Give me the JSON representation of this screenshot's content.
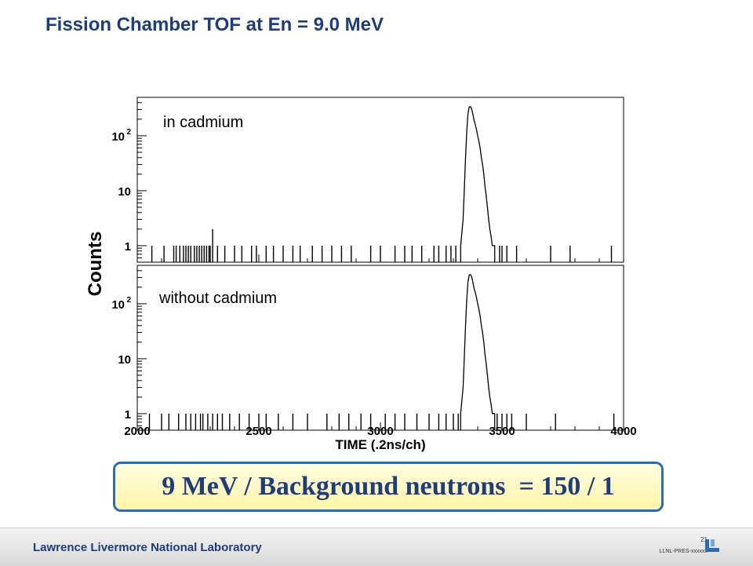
{
  "slide": {
    "title": "Fission Chamber TOF at En = 9.0 MeV",
    "callout": "9 MeV / Background neutrons  = 150 / 1"
  },
  "footer": {
    "lab": "Lawrence Livermore National Laboratory",
    "page": "21",
    "code": "LLNL-PRES-xxxxxx"
  },
  "colors": {
    "title": "#1f3d7a",
    "callout_border": "#2a6db5",
    "callout_fill": "#fff4a8",
    "trace": "#000000"
  },
  "chart_data": {
    "type": "line",
    "xlabel": "TIME (.2ns/ch)",
    "ylabel": "Counts",
    "xlim": [
      2000,
      4000
    ],
    "x_ticks": [
      "2000",
      "2500",
      "3000",
      "3500",
      "4000"
    ],
    "y_scale": "log",
    "ylim": [
      0.5,
      500
    ],
    "y_ticks": [
      {
        "value": 1,
        "label": "1"
      },
      {
        "value": 10,
        "label": "10"
      },
      {
        "value": 100,
        "label": "10",
        "exp": "2"
      }
    ],
    "grid": false,
    "legend": "none",
    "panels": [
      {
        "label": "in cadmium",
        "peak": {
          "x": [
            3330,
            3340,
            3345,
            3350,
            3355,
            3360,
            3365,
            3370,
            3375,
            3380,
            3385,
            3390,
            3395,
            3400,
            3405,
            3410,
            3415,
            3420,
            3425,
            3430,
            3435,
            3440,
            3445,
            3450,
            3455,
            3460,
            3465,
            3470
          ],
          "y": [
            1,
            3,
            10,
            40,
            120,
            250,
            330,
            340,
            310,
            250,
            190,
            160,
            130,
            100,
            80,
            60,
            40,
            30,
            20,
            12,
            8,
            5,
            3,
            2,
            1.5,
            1,
            1,
            1
          ]
        },
        "background_x": [
          2060,
          2110,
          2150,
          2160,
          2175,
          2190,
          2200,
          2210,
          2220,
          2235,
          2245,
          2255,
          2265,
          2275,
          2285,
          2295,
          2300,
          2310,
          2330,
          2360,
          2400,
          2430,
          2470,
          2490,
          2530,
          2560,
          2600,
          2640,
          2670,
          2720,
          2760,
          2800,
          2840,
          2880,
          2960,
          3000,
          3060,
          3100,
          3130,
          3170,
          3220,
          3240,
          3270,
          3290,
          3310,
          3490,
          3500,
          3520,
          3560,
          3700,
          3780,
          3950
        ],
        "background_y": [
          1,
          1,
          1,
          1,
          1,
          1,
          1,
          1,
          1,
          1,
          1,
          1,
          1,
          1,
          1,
          1,
          1,
          2,
          1,
          1,
          1,
          1,
          1,
          1,
          1,
          1,
          1,
          1,
          1,
          1,
          1,
          1,
          1,
          1,
          1,
          1,
          1,
          1,
          1,
          1,
          1,
          1,
          1,
          1,
          1,
          1,
          1,
          1,
          1,
          1,
          1,
          1
        ]
      },
      {
        "label": "without cadmium",
        "peak": {
          "x": [
            3330,
            3340,
            3345,
            3350,
            3355,
            3360,
            3365,
            3370,
            3375,
            3380,
            3385,
            3390,
            3395,
            3400,
            3405,
            3410,
            3415,
            3420,
            3425,
            3430,
            3435,
            3440,
            3445,
            3450,
            3455,
            3460,
            3465,
            3470
          ],
          "y": [
            1,
            3,
            10,
            40,
            120,
            250,
            330,
            340,
            310,
            250,
            190,
            160,
            130,
            100,
            80,
            60,
            40,
            30,
            20,
            12,
            8,
            5,
            3,
            2,
            1.5,
            1,
            1,
            1
          ]
        },
        "background_x": [
          2050,
          2100,
          2130,
          2170,
          2200,
          2220,
          2240,
          2260,
          2270,
          2290,
          2310,
          2330,
          2350,
          2380,
          2420,
          2460,
          2500,
          2530,
          2580,
          2640,
          2700,
          2780,
          2830,
          2870,
          2920,
          2960,
          3020,
          3060,
          3100,
          3150,
          3200,
          3240,
          3270,
          3300,
          3320,
          3480,
          3500,
          3520,
          3540,
          3600,
          3720,
          3960
        ],
        "background_y": [
          1,
          1,
          1,
          1,
          1,
          1,
          1,
          1,
          1,
          1,
          1,
          1,
          1,
          1,
          1,
          1,
          1,
          1,
          1,
          1,
          1,
          1,
          1,
          1,
          1,
          1,
          1,
          1,
          1,
          1,
          1,
          1,
          1,
          1,
          1,
          1,
          1,
          1,
          1,
          1,
          1,
          1
        ]
      }
    ]
  }
}
